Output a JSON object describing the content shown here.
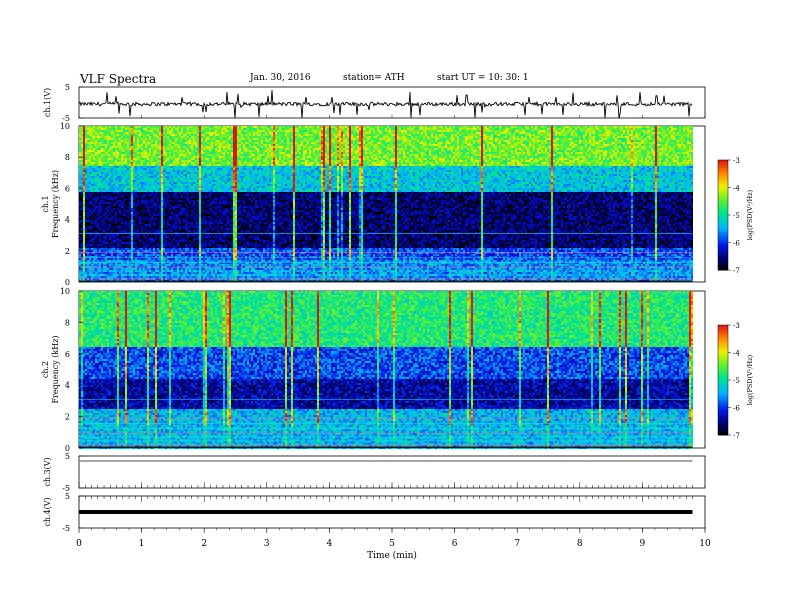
{
  "header": {
    "title": "VLF  Spectra",
    "date": "Jan. 30, 2016",
    "station": "station= ATH",
    "start": "start  UT  =   10: 30: 1"
  },
  "chart_data": [
    {
      "type": "line",
      "panel": "ch1",
      "ylabel": "ch.1(V)",
      "yticks": [
        "5",
        "-5"
      ],
      "ylim": [
        -5,
        5
      ],
      "xlim": [
        0,
        10
      ],
      "description_values": {
        "baseline_v": -0.5,
        "noise_amplitude_v": 0.6
      }
    },
    {
      "type": "heatmap",
      "panel": "ch1",
      "ylabel_top": "ch.1",
      "ylabel": "Frequency  (kHz)",
      "yticks": [
        "0",
        "2",
        "4",
        "6",
        "8",
        "10"
      ],
      "ylim": [
        0,
        10
      ],
      "xlim": [
        0,
        9.8
      ],
      "colorbar": {
        "label": "log(PSD(V²/Hz)",
        "ticks": [
          "-3",
          "-4",
          "-5",
          "-6",
          "-7"
        ],
        "range": [
          -7,
          -3
        ]
      },
      "bands": [
        {
          "f_lo": 0,
          "f_hi": 1.5,
          "level": -5.6
        },
        {
          "f_lo": 1.5,
          "f_hi": 2.2,
          "level": -5.9
        },
        {
          "f_lo": 2.2,
          "f_hi": 5.8,
          "level": -6.6
        },
        {
          "f_lo": 5.8,
          "f_hi": 7.5,
          "level": -5.3
        },
        {
          "f_lo": 7.5,
          "f_hi": 10,
          "level": -4.4
        }
      ]
    },
    {
      "type": "heatmap",
      "panel": "ch2",
      "ylabel_top": "ch.2",
      "ylabel": "Frequency  (kHz)",
      "yticks": [
        "0",
        "2",
        "4",
        "6",
        "8",
        "10"
      ],
      "ylim": [
        0,
        10
      ],
      "xlim": [
        0,
        9.8
      ],
      "colorbar": {
        "label": "log(PSD(V²/Hz)",
        "ticks": [
          "-3",
          "-4",
          "-5",
          "-6",
          "-7"
        ],
        "range": [
          -7,
          -3
        ]
      },
      "bands": [
        {
          "f_lo": 0,
          "f_hi": 2.5,
          "level": -5.4
        },
        {
          "f_lo": 2.5,
          "f_hi": 4.5,
          "level": -6.4
        },
        {
          "f_lo": 4.5,
          "f_hi": 6.5,
          "level": -5.9
        },
        {
          "f_lo": 6.5,
          "f_hi": 10,
          "level": -4.8
        }
      ]
    },
    {
      "type": "line",
      "panel": "ch3",
      "ylabel": "ch.3(V)",
      "yticks": [
        "5",
        "-5"
      ],
      "ylim": [
        -5,
        5
      ],
      "xlim": [
        0,
        9.8
      ],
      "values_const": 5
    },
    {
      "type": "line",
      "panel": "ch4",
      "ylabel": "ch.4(V)",
      "yticks": [
        "5",
        "-5"
      ],
      "ylim": [
        -5,
        5
      ],
      "xlim": [
        0,
        9.8
      ],
      "values_const": 0
    }
  ],
  "xaxis": {
    "label": "Time  (min)",
    "ticks": [
      "0",
      "1",
      "2",
      "3",
      "4",
      "5",
      "6",
      "7",
      "8",
      "9",
      "10"
    ],
    "range": [
      0,
      10
    ]
  }
}
